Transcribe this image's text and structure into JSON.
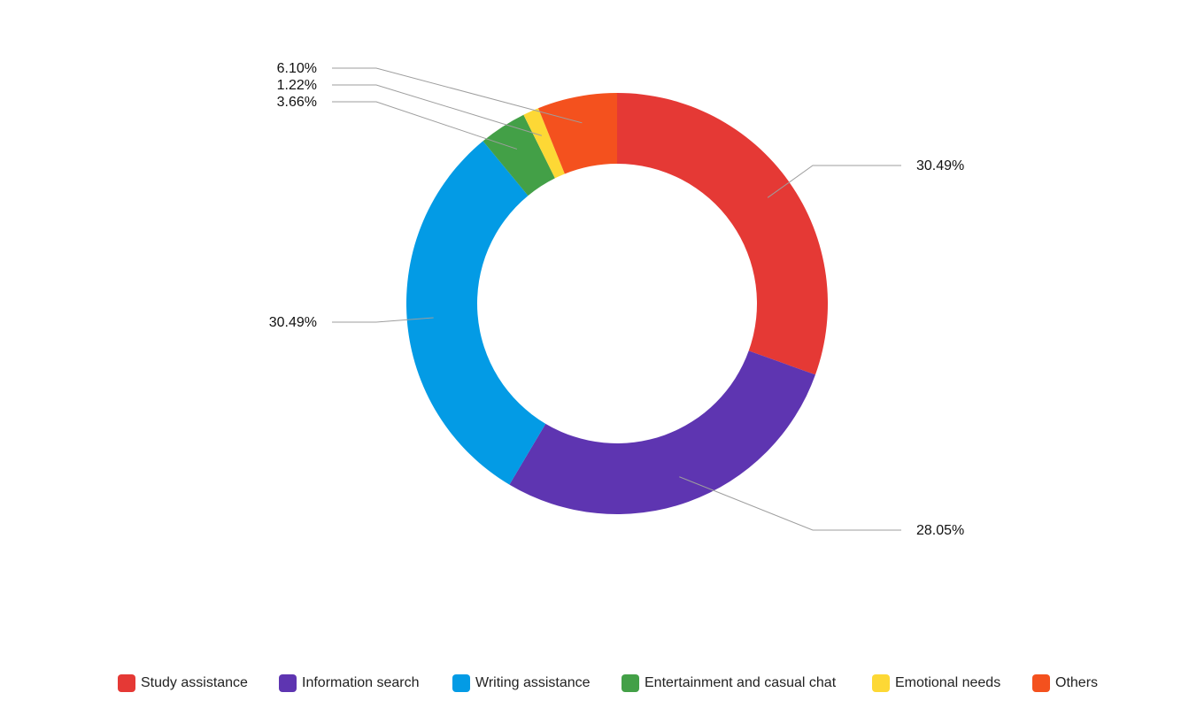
{
  "chart_data": {
    "type": "pie",
    "variant": "donut",
    "title": "",
    "legend_position": "bottom",
    "categories": [
      "Study assistance",
      "Information search",
      "Writing assistance",
      "Entertainment and casual chat",
      "Emotional needs",
      "Others"
    ],
    "values": [
      30.49,
      28.05,
      30.49,
      3.66,
      1.22,
      6.1
    ],
    "labels": [
      "30.49%",
      "28.05%",
      "30.49%",
      "3.66%",
      "1.22%",
      "6.10%"
    ],
    "colors": [
      "#E53935",
      "#5E35B1",
      "#039BE5",
      "#43A047",
      "#FDD835",
      "#F4511E"
    ]
  }
}
